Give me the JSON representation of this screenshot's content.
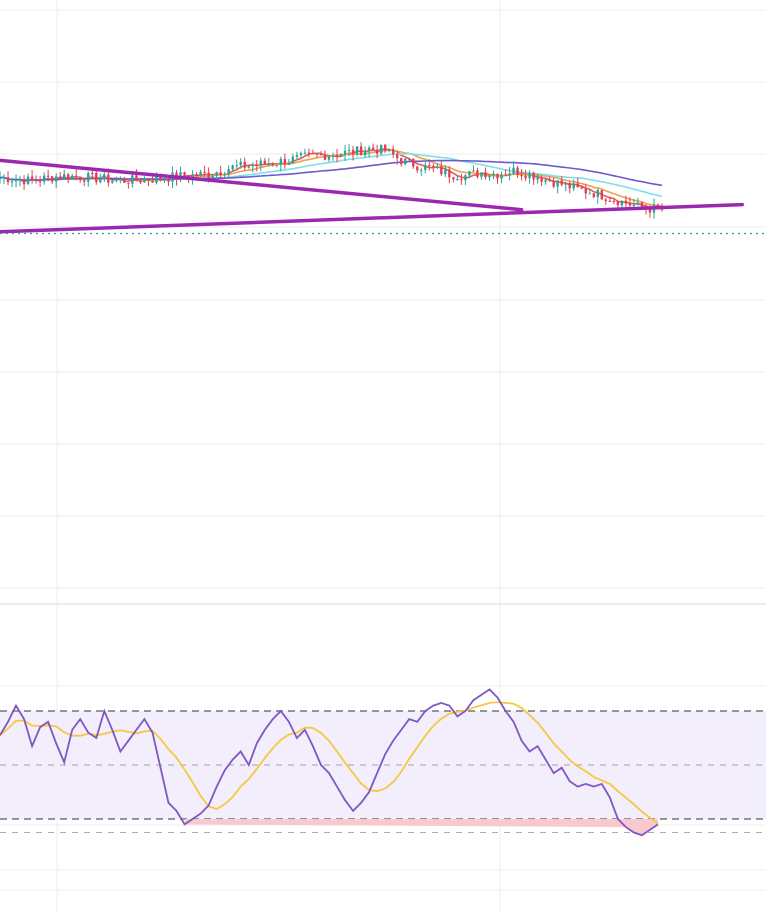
{
  "colors": {
    "background": "#ffffff",
    "grid": "#eceef3",
    "up_candle": "#26a69a",
    "down_candle": "#e0404f",
    "trendline": "#9c27b0",
    "ma_fast": "#e85a5a",
    "ma_mid": "#f0a050",
    "ma_slow_cyan": "#7ee0e8",
    "ma_long": "#6a5acd",
    "last_price_line": "#26a69a",
    "rsi_line": "#7e57c2",
    "rsi_signal": "#f5c842",
    "rsi_band_fill": "#f3eefb",
    "rsi_oversold_fill": "#f8c9cf",
    "rsi_levels": "#666666"
  },
  "chart_data": [
    {
      "type": "candlestick",
      "x_index_range": [
        0,
        165
      ],
      "ylim": [
        0,
        100
      ],
      "anchors": [
        [
          0,
          78
        ],
        [
          8,
          76
        ],
        [
          15,
          79
        ],
        [
          22,
          78
        ],
        [
          30,
          76
        ],
        [
          38,
          77
        ],
        [
          46,
          79
        ],
        [
          52,
          80
        ],
        [
          58,
          84
        ],
        [
          66,
          86
        ],
        [
          72,
          88
        ],
        [
          76,
          90
        ],
        [
          80,
          91
        ],
        [
          84,
          92
        ],
        [
          88,
          93
        ],
        [
          92,
          95
        ],
        [
          96,
          94
        ],
        [
          100,
          88
        ],
        [
          104,
          85
        ],
        [
          108,
          83
        ],
        [
          112,
          80
        ],
        [
          116,
          79
        ],
        [
          120,
          81
        ],
        [
          124,
          80
        ],
        [
          128,
          82
        ],
        [
          132,
          80
        ],
        [
          136,
          77
        ],
        [
          140,
          74
        ],
        [
          144,
          71
        ],
        [
          148,
          69
        ],
        [
          152,
          66
        ],
        [
          156,
          63
        ],
        [
          160,
          60
        ],
        [
          165,
          59
        ]
      ],
      "candles_count": 166,
      "moving_averages": [
        {
          "key": "ma_fast",
          "period": 5
        },
        {
          "key": "ma_mid",
          "period": 12
        },
        {
          "key": "ma_slow_cyan",
          "period": 30
        },
        {
          "key": "ma_long",
          "period": 60
        }
      ],
      "trendlines": [
        {
          "from": [
            0,
            88
          ],
          "to": [
            130,
            59
          ]
        },
        {
          "from": [
            0,
            46
          ],
          "to": [
            185,
            62
          ]
        }
      ],
      "last_price_line": 45,
      "grid": true
    },
    {
      "type": "line",
      "name": "",
      "ylim": [
        0,
        100
      ],
      "levels": [
        70,
        50,
        30,
        25
      ],
      "band": [
        30,
        70
      ],
      "x_index_range": [
        0,
        165
      ],
      "rsi": [
        [
          0,
          61
        ],
        [
          2,
          66
        ],
        [
          4,
          72
        ],
        [
          6,
          67
        ],
        [
          8,
          57
        ],
        [
          10,
          64
        ],
        [
          12,
          66
        ],
        [
          14,
          58
        ],
        [
          16,
          51
        ],
        [
          18,
          63
        ],
        [
          20,
          67
        ],
        [
          22,
          62
        ],
        [
          24,
          60
        ],
        [
          26,
          70
        ],
        [
          28,
          63
        ],
        [
          30,
          55
        ],
        [
          32,
          59
        ],
        [
          34,
          63
        ],
        [
          36,
          67
        ],
        [
          38,
          62
        ],
        [
          40,
          49
        ],
        [
          42,
          36
        ],
        [
          44,
          33
        ],
        [
          46,
          28
        ],
        [
          48,
          30
        ],
        [
          50,
          32
        ],
        [
          52,
          35
        ],
        [
          54,
          42
        ],
        [
          56,
          48
        ],
        [
          58,
          52
        ],
        [
          60,
          55
        ],
        [
          62,
          50
        ],
        [
          64,
          58
        ],
        [
          66,
          63
        ],
        [
          68,
          67
        ],
        [
          70,
          70
        ],
        [
          72,
          66
        ],
        [
          74,
          60
        ],
        [
          76,
          63
        ],
        [
          78,
          57
        ],
        [
          80,
          50
        ],
        [
          82,
          47
        ],
        [
          84,
          42
        ],
        [
          86,
          37
        ],
        [
          88,
          33
        ],
        [
          90,
          36
        ],
        [
          92,
          40
        ],
        [
          94,
          47
        ],
        [
          96,
          54
        ],
        [
          98,
          59
        ],
        [
          100,
          63
        ],
        [
          102,
          67
        ],
        [
          104,
          66
        ],
        [
          106,
          70
        ],
        [
          108,
          72
        ],
        [
          110,
          73
        ],
        [
          112,
          72
        ],
        [
          114,
          68
        ],
        [
          116,
          70
        ],
        [
          118,
          74
        ],
        [
          120,
          76
        ],
        [
          122,
          78
        ],
        [
          124,
          75
        ],
        [
          126,
          70
        ],
        [
          128,
          66
        ],
        [
          130,
          59
        ],
        [
          132,
          55
        ],
        [
          134,
          57
        ],
        [
          136,
          52
        ],
        [
          138,
          47
        ],
        [
          140,
          49
        ],
        [
          142,
          44
        ],
        [
          144,
          42
        ],
        [
          146,
          43
        ],
        [
          148,
          42
        ],
        [
          150,
          43
        ],
        [
          152,
          38
        ],
        [
          154,
          30
        ],
        [
          156,
          27
        ],
        [
          158,
          25
        ],
        [
          160,
          24
        ],
        [
          162,
          26
        ],
        [
          164,
          28
        ]
      ],
      "signal_period": 14
    }
  ]
}
